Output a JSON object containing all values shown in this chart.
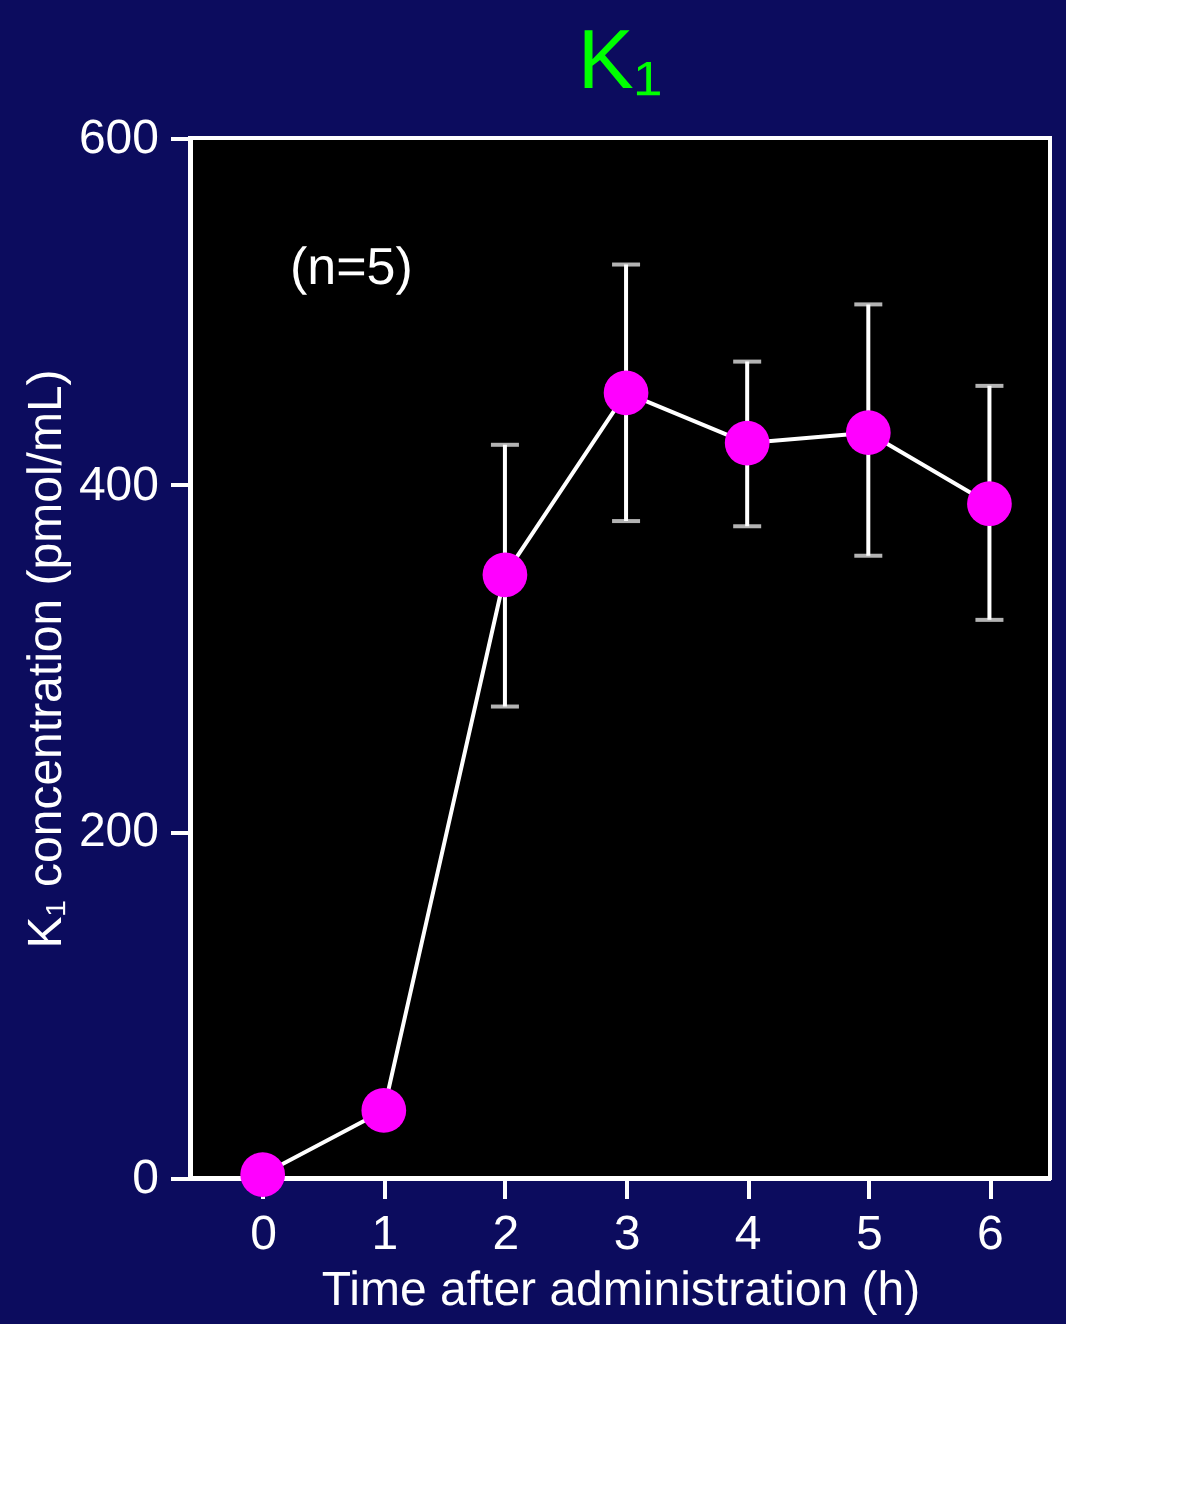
{
  "chart_data": {
    "type": "line",
    "title": "K₁",
    "xlabel": "Time after administration (h)",
    "ylabel": "K₁ concentration (pmol/mL)",
    "x": [
      0,
      1,
      2,
      3,
      4,
      5,
      6
    ],
    "series": [
      {
        "color": "#ff00ff",
        "values": [
          2,
          39,
          348,
          453,
          424,
          430,
          389
        ],
        "errors": [
          null,
          null,
          [
            272,
            423
          ],
          [
            379,
            527
          ],
          [
            376,
            471
          ],
          [
            359,
            504
          ],
          [
            322,
            457
          ]
        ]
      }
    ],
    "xlim": [
      -0.6,
      6.5
    ],
    "xticks": [
      0,
      1,
      2,
      3,
      4,
      5,
      6
    ],
    "ylim": [
      0,
      600
    ],
    "yticks": [
      0,
      200,
      400,
      600
    ],
    "annotations": [
      "(n=5)"
    ],
    "marker": "circle",
    "grid": false
  }
}
